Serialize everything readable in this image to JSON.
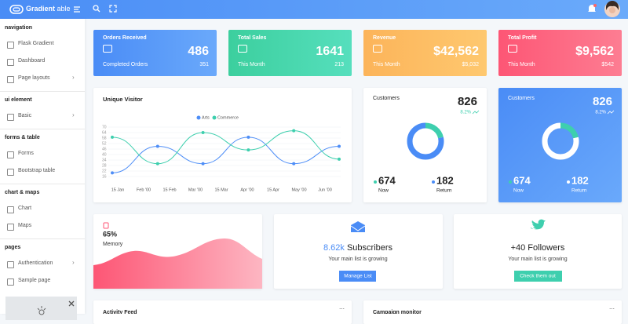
{
  "header": {
    "brand": "Gradient",
    "brand_suffix": "able"
  },
  "sidebar": {
    "sections": [
      {
        "title": "navigation",
        "items": [
          "Flask Gradient",
          "Dashboard",
          "Page layouts"
        ]
      },
      {
        "title": "ui element",
        "items": [
          "Basic"
        ]
      },
      {
        "title": "forms & table",
        "items": [
          "Forms",
          "Bootstrap table"
        ]
      },
      {
        "title": "chart & maps",
        "items": [
          "Chart",
          "Maps"
        ]
      },
      {
        "title": "pages",
        "items": [
          "Authentication",
          "Sample page"
        ]
      }
    ]
  },
  "stat_cards": [
    {
      "title": "Orders Received",
      "value": "486",
      "footer_label": "Completed Orders",
      "footer_value": "351"
    },
    {
      "title": "Total Sales",
      "value": "1641",
      "footer_label": "This Month",
      "footer_value": "213"
    },
    {
      "title": "Revenue",
      "value": "$42,562",
      "footer_label": "This Month",
      "footer_value": "$5,032"
    },
    {
      "title": "Total Profit",
      "value": "$9,562",
      "footer_label": "This Month",
      "footer_value": "$542"
    }
  ],
  "unique_visitor": {
    "title": "Unique Visitor",
    "type": "line",
    "x_labels": [
      "15 Jan",
      "Feb '00",
      "15 Feb",
      "Mar '00",
      "15 Mar",
      "Apr '00",
      "15 Apr",
      "May '00",
      "Jun '00"
    ],
    "ylim": [
      16,
      70
    ],
    "yticks": [
      70,
      64,
      58,
      52,
      46,
      40,
      34,
      28,
      22,
      16
    ],
    "grid": true,
    "series": [
      {
        "name": "Arts",
        "color": "#4e8ef7",
        "values": [
          20,
          49,
          30,
          59,
          30,
          49
        ]
      },
      {
        "name": "Commerce",
        "color": "#3ecfae",
        "values": [
          59,
          30,
          64,
          45,
          66,
          35
        ]
      }
    ]
  },
  "customers": [
    {
      "title": "Customers",
      "total": 826,
      "change": "8.2%",
      "now": 674,
      "now_label": "Now",
      "return": 182,
      "return_label": "Return"
    },
    {
      "title": "Customers",
      "total": 826,
      "change": "8.2%",
      "now": 674,
      "now_label": "Now",
      "return": 182,
      "return_label": "Return"
    }
  ],
  "memory": {
    "value": "65%",
    "label": "Memory"
  },
  "subscribers": {
    "value": "8.62k",
    "label": "Subscribers",
    "text": "Your main list is growing",
    "button": "Manage List"
  },
  "followers": {
    "title": "+40 Followers",
    "text": "Your main list is growing",
    "button": "Check them out"
  },
  "bottom_cards": [
    "Activity Feed",
    "Campaign monitor"
  ]
}
